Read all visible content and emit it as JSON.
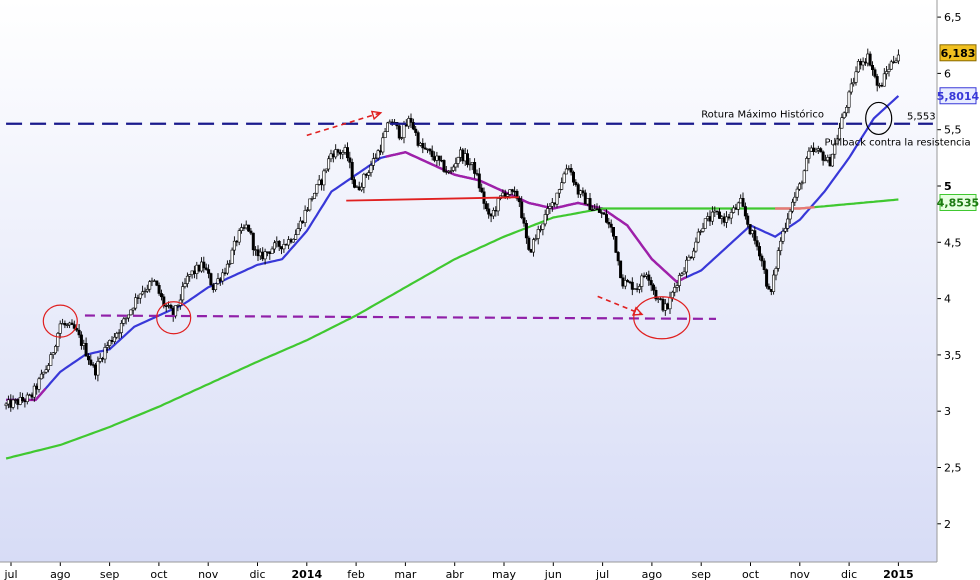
{
  "chart_data": {
    "type": "candlestick",
    "title": "",
    "xlabel": "",
    "ylabel": "",
    "ylim": [
      1.6,
      6.6
    ],
    "y_ticks": [
      2,
      2.5,
      3,
      3.5,
      4,
      4.5,
      5,
      5.5,
      6,
      6.5
    ],
    "y_tick_labels": [
      "2",
      "2,5",
      "3",
      "3,5",
      "4",
      "4,5",
      "5",
      "5,5",
      "6",
      "6,5"
    ],
    "x_ticks": [
      {
        "label": "jul",
        "month": 0
      },
      {
        "label": "ago",
        "month": 1
      },
      {
        "label": "sep",
        "month": 2
      },
      {
        "label": "oct",
        "month": 3
      },
      {
        "label": "nov",
        "month": 4
      },
      {
        "label": "dic",
        "month": 5
      },
      {
        "label": "2014",
        "month": 6,
        "bold": true
      },
      {
        "label": "feb",
        "month": 7
      },
      {
        "label": "mar",
        "month": 8
      },
      {
        "label": "abr",
        "month": 9
      },
      {
        "label": "may",
        "month": 10
      },
      {
        "label": "jun",
        "month": 11
      },
      {
        "label": "jul",
        "month": 12
      },
      {
        "label": "ago",
        "month": 13
      },
      {
        "label": "sep",
        "month": 14
      },
      {
        "label": "oct",
        "month": 15
      },
      {
        "label": "nov",
        "month": 16
      },
      {
        "label": "dic",
        "month": 17
      },
      {
        "label": "2015",
        "month": 18,
        "bold": true
      }
    ],
    "price_path": [
      [
        -0.1,
        3.05
      ],
      [
        0.4,
        3.12
      ],
      [
        0.8,
        3.45
      ],
      [
        1.0,
        3.78
      ],
      [
        1.3,
        3.72
      ],
      [
        1.5,
        3.55
      ],
      [
        1.7,
        3.35
      ],
      [
        1.9,
        3.55
      ],
      [
        2.3,
        3.8
      ],
      [
        2.6,
        4.05
      ],
      [
        2.9,
        4.15
      ],
      [
        3.1,
        3.95
      ],
      [
        3.3,
        3.85
      ],
      [
        3.6,
        4.2
      ],
      [
        3.9,
        4.3
      ],
      [
        4.1,
        4.1
      ],
      [
        4.4,
        4.3
      ],
      [
        4.6,
        4.55
      ],
      [
        4.8,
        4.65
      ],
      [
        5.0,
        4.35
      ],
      [
        5.3,
        4.45
      ],
      [
        5.6,
        4.5
      ],
      [
        5.8,
        4.6
      ],
      [
        6.1,
        4.9
      ],
      [
        6.3,
        5.05
      ],
      [
        6.5,
        5.3
      ],
      [
        6.8,
        5.3
      ],
      [
        7.0,
        4.95
      ],
      [
        7.2,
        5.1
      ],
      [
        7.5,
        5.35
      ],
      [
        7.7,
        5.6
      ],
      [
        7.9,
        5.45
      ],
      [
        8.1,
        5.6
      ],
      [
        8.3,
        5.35
      ],
      [
        8.6,
        5.25
      ],
      [
        8.9,
        5.1
      ],
      [
        9.1,
        5.3
      ],
      [
        9.4,
        5.15
      ],
      [
        9.7,
        4.7
      ],
      [
        10.0,
        4.95
      ],
      [
        10.3,
        4.9
      ],
      [
        10.5,
        4.4
      ],
      [
        10.8,
        4.7
      ],
      [
        11.0,
        4.85
      ],
      [
        11.3,
        5.2
      ],
      [
        11.5,
        4.95
      ],
      [
        11.8,
        4.8
      ],
      [
        12.0,
        4.75
      ],
      [
        12.2,
        4.6
      ],
      [
        12.4,
        4.15
      ],
      [
        12.7,
        4.1
      ],
      [
        12.9,
        4.25
      ],
      [
        13.1,
        4.0
      ],
      [
        13.3,
        3.9
      ],
      [
        13.5,
        4.15
      ],
      [
        13.8,
        4.4
      ],
      [
        14.0,
        4.65
      ],
      [
        14.3,
        4.75
      ],
      [
        14.5,
        4.7
      ],
      [
        14.8,
        4.85
      ],
      [
        15.0,
        4.6
      ],
      [
        15.2,
        4.4
      ],
      [
        15.4,
        4.0
      ],
      [
        15.6,
        4.5
      ],
      [
        15.8,
        4.8
      ],
      [
        16.0,
        5.0
      ],
      [
        16.2,
        5.3
      ],
      [
        16.4,
        5.3
      ],
      [
        16.6,
        5.2
      ],
      [
        16.8,
        5.5
      ],
      [
        17.0,
        5.8
      ],
      [
        17.2,
        6.1
      ],
      [
        17.4,
        6.15
      ],
      [
        17.6,
        5.85
      ],
      [
        17.8,
        6.05
      ],
      [
        18.0,
        6.18
      ]
    ],
    "series": [
      {
        "name": "",
        "value_label": "5,8014",
        "value": 5.8014,
        "color": "#3838d8",
        "points": [
          [
            -0.1,
            3.1
          ],
          [
            0.5,
            3.1
          ],
          [
            1.0,
            3.35
          ],
          [
            1.5,
            3.5
          ],
          [
            2.0,
            3.55
          ],
          [
            2.5,
            3.75
          ],
          [
            3.0,
            3.85
          ],
          [
            3.5,
            3.95
          ],
          [
            4.0,
            4.1
          ],
          [
            4.5,
            4.2
          ],
          [
            5.0,
            4.3
          ],
          [
            5.5,
            4.35
          ],
          [
            6.0,
            4.6
          ],
          [
            6.5,
            4.95
          ],
          [
            7.0,
            5.1
          ],
          [
            7.5,
            5.25
          ],
          [
            8.0,
            5.3
          ],
          [
            8.5,
            5.2
          ],
          [
            9.0,
            5.1
          ],
          [
            9.5,
            5.05
          ],
          [
            10.0,
            4.95
          ],
          [
            10.5,
            4.85
          ],
          [
            11.0,
            4.8
          ],
          [
            11.5,
            4.85
          ],
          [
            12.0,
            4.8
          ],
          [
            12.5,
            4.65
          ],
          [
            13.0,
            4.35
          ],
          [
            13.5,
            4.15
          ],
          [
            14.0,
            4.25
          ],
          [
            14.5,
            4.45
          ],
          [
            15.0,
            4.65
          ],
          [
            15.5,
            4.55
          ],
          [
            16.0,
            4.7
          ],
          [
            16.5,
            4.95
          ],
          [
            17.0,
            5.25
          ],
          [
            17.5,
            5.6
          ],
          [
            18.0,
            5.8
          ]
        ],
        "segments_purple": [
          [
            -0.1,
            0.7
          ],
          [
            7.6,
            13.7
          ]
        ],
        "purple_color": "#a020a8"
      },
      {
        "name": "",
        "value_label": "4,8535",
        "value": 4.8535,
        "color": "#40c830",
        "points": [
          [
            -0.1,
            2.58
          ],
          [
            1.0,
            2.7
          ],
          [
            2.0,
            2.86
          ],
          [
            3.0,
            3.04
          ],
          [
            4.0,
            3.24
          ],
          [
            5.0,
            3.44
          ],
          [
            6.0,
            3.63
          ],
          [
            7.0,
            3.85
          ],
          [
            8.0,
            4.1
          ],
          [
            9.0,
            4.35
          ],
          [
            10.0,
            4.55
          ],
          [
            11.0,
            4.72
          ],
          [
            12.0,
            4.8
          ],
          [
            13.0,
            4.8
          ],
          [
            14.0,
            4.8
          ],
          [
            15.0,
            4.8
          ],
          [
            16.0,
            4.8
          ],
          [
            17.0,
            4.84
          ],
          [
            18.0,
            4.88
          ]
        ],
        "segments_pink": [
          [
            15.5,
            16.3
          ]
        ],
        "pink_color": "#e87878"
      }
    ],
    "horizontal_lines": [
      {
        "name": "maximo-historico",
        "y": 5.553,
        "x_start": -0.1,
        "x_end": 18.7,
        "color": "#1a1a8c",
        "style": "dashed",
        "label": "5,553"
      },
      {
        "name": "soporte",
        "y": 3.83,
        "x_from": 1.5,
        "y_from": 3.85,
        "x_to": 14.3,
        "y_to": 3.82,
        "color": "#9020a8",
        "style": "dashed"
      },
      {
        "name": "linea-roja",
        "x_from": 6.8,
        "y_from": 4.87,
        "x_to": 10.3,
        "y_to": 4.9,
        "color": "#e02020",
        "style": "solid"
      }
    ],
    "last_price": {
      "value": 6.183,
      "label": "6,183",
      "color": "#f0c020"
    },
    "annotations": [
      {
        "text": "Rotura Máximo Histórico",
        "x": 14.0,
        "y": 5.61
      },
      {
        "text": "Pullback contra la resistencia",
        "x": 16.5,
        "y": 5.36
      }
    ],
    "circles": [
      {
        "x": 1.0,
        "y": 3.8,
        "color": "#e02020"
      },
      {
        "x": 3.3,
        "y": 3.83,
        "color": "#e02020"
      },
      {
        "x": 13.2,
        "y": 3.83,
        "color": "#e02020"
      },
      {
        "x": 17.6,
        "y": 5.6,
        "color": "#000000"
      }
    ],
    "arrows": [
      {
        "x1": 6.0,
        "y1": 5.45,
        "x2": 7.5,
        "y2": 5.65,
        "color": "#e02020"
      },
      {
        "x1": 11.9,
        "y1": 4.02,
        "x2": 12.8,
        "y2": 3.86,
        "color": "#e02020"
      }
    ]
  }
}
